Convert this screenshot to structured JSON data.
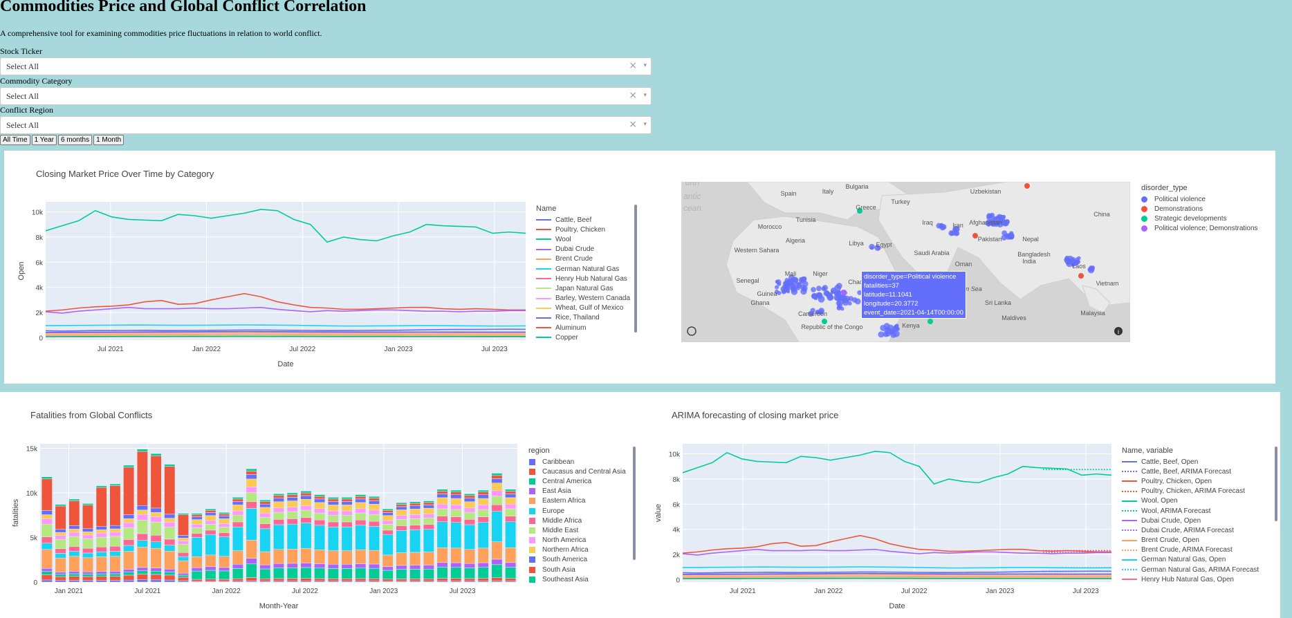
{
  "page": {
    "title": "Commodities Price and Global Conflict Correlation",
    "subtitle": "A comprehensive tool for examining commodities price fluctuations in relation to world conflict."
  },
  "filters": [
    {
      "label": "Stock Ticker",
      "value": "Select All"
    },
    {
      "label": "Commodity Category",
      "value": "Select All"
    },
    {
      "label": "Conflict Region",
      "value": "Select All"
    }
  ],
  "range_buttons": [
    "All Time",
    "1 Year",
    "6 months",
    "1 Month"
  ],
  "icons": {
    "clear": "×",
    "dropdown": "▾",
    "mapbox_logo": "mapbox-logo-icon",
    "info": "info-icon"
  },
  "chart_data": [
    {
      "type": "line",
      "title": "Closing Market Price Over Time by Category",
      "xlabel": "Date",
      "ylabel": "Open",
      "x_ticks": [
        "Jul 2021",
        "Jan 2022",
        "Jul 2022",
        "Jan 2023",
        "Jul 2023"
      ],
      "y_ticks": [
        "0",
        "2k",
        "4k",
        "6k",
        "8k",
        "10k"
      ],
      "ylim": [
        -200,
        10800
      ],
      "legend_title": "Name",
      "series": [
        {
          "name": "Cattle, Beef",
          "color": "#636efa",
          "values": [
            550,
            520,
            540,
            560,
            560,
            570,
            580,
            560,
            560,
            570,
            580,
            590,
            600,
            600,
            590,
            580,
            570,
            560,
            560,
            570,
            580,
            580,
            600,
            620,
            640,
            650,
            650,
            660,
            670,
            660
          ]
        },
        {
          "name": "Poultry, Chicken",
          "color": "#ef553b",
          "values": [
            2100,
            2200,
            2350,
            2450,
            2500,
            2600,
            2850,
            2950,
            2650,
            2700,
            3000,
            3250,
            3500,
            3250,
            2850,
            2600,
            2400,
            2350,
            2250,
            2250,
            2300,
            2350,
            2400,
            2400,
            2300,
            2250,
            2300,
            2250,
            2200,
            2200
          ]
        },
        {
          "name": "Wool",
          "color": "#00cc96",
          "values": [
            8500,
            8900,
            9300,
            10100,
            9600,
            9400,
            9350,
            9300,
            9800,
            9700,
            9500,
            9700,
            9900,
            10200,
            10100,
            9400,
            9000,
            7600,
            8000,
            7800,
            7700,
            8100,
            8400,
            9000,
            8900,
            8850,
            8800,
            8300,
            8400,
            8300
          ]
        },
        {
          "name": "Dubai Crude",
          "color": "#ab63fa",
          "values": [
            2050,
            1950,
            2100,
            2200,
            2300,
            2400,
            2300,
            2300,
            2300,
            2350,
            2300,
            2300,
            2350,
            2400,
            2250,
            2150,
            2050,
            2150,
            2100,
            2150,
            2200,
            2200,
            2150,
            2100,
            2100,
            2050,
            2100,
            2100,
            2150,
            2150
          ]
        },
        {
          "name": "Brent Crude",
          "color": "#ffa15a",
          "values": [
            180,
            185,
            190,
            195,
            200,
            210,
            215,
            220,
            225,
            230,
            240,
            250,
            260,
            255,
            245,
            235,
            225,
            220,
            215,
            210,
            205,
            200,
            198,
            195,
            195,
            190,
            192,
            195,
            198,
            200
          ]
        },
        {
          "name": "German Natural Gas",
          "color": "#19d3f3",
          "values": [
            950,
            960,
            970,
            980,
            990,
            1000,
            1000,
            990,
            980,
            980,
            990,
            1000,
            1010,
            1000,
            990,
            980,
            960,
            940,
            920,
            920,
            930,
            940,
            950,
            960,
            950,
            940,
            930,
            920,
            920,
            930
          ]
        },
        {
          "name": "Henry Hub Natural Gas",
          "color": "#ff6692",
          "values": [
            350,
            360,
            370,
            380,
            390,
            400,
            410,
            420,
            420,
            430,
            440,
            450,
            460,
            450,
            440,
            430,
            420,
            410,
            400,
            400,
            400,
            410,
            420,
            420,
            410,
            400,
            400,
            400,
            410,
            410
          ]
        },
        {
          "name": "Japan Natural Gas",
          "color": "#b6e880",
          "values": [
            100,
            105,
            110,
            115,
            120,
            125,
            130,
            135,
            140,
            145,
            150,
            155,
            160,
            155,
            150,
            145,
            140,
            135,
            130,
            128,
            126,
            125,
            124,
            123,
            122,
            121,
            120,
            120,
            120,
            120
          ]
        },
        {
          "name": "Barley, Western Canada",
          "color": "#ff97ff",
          "values": [
            250,
            255,
            260,
            265,
            270,
            275,
            280,
            285,
            290,
            295,
            300,
            305,
            310,
            305,
            300,
            295,
            290,
            285,
            280,
            278,
            276,
            275,
            274,
            273,
            272,
            271,
            270,
            270,
            270,
            270
          ]
        },
        {
          "name": "Wheat, Gulf of Mexico",
          "color": "#fecb52",
          "values": [
            300,
            305,
            310,
            315,
            320,
            325,
            330,
            335,
            340,
            345,
            350,
            355,
            360,
            355,
            350,
            345,
            340,
            335,
            330,
            328,
            326,
            325,
            324,
            323,
            322,
            321,
            320,
            320,
            320,
            320
          ]
        },
        {
          "name": "Rice, Thailand",
          "color": "#636efa",
          "values": [
            420,
            425,
            430,
            435,
            440,
            445,
            450,
            455,
            460,
            465,
            470,
            475,
            480,
            475,
            470,
            465,
            460,
            455,
            450,
            448,
            446,
            445,
            444,
            443,
            442,
            441,
            440,
            440,
            440,
            440
          ]
        },
        {
          "name": "Aluminum",
          "color": "#ef553b",
          "values": [
            60,
            62,
            64,
            66,
            68,
            70,
            72,
            74,
            76,
            78,
            80,
            82,
            84,
            82,
            80,
            78,
            76,
            74,
            72,
            71,
            70,
            70,
            69,
            69,
            68,
            68,
            67,
            67,
            66,
            66
          ]
        },
        {
          "name": "Copper",
          "color": "#00cc96",
          "values": [
            80,
            82,
            84,
            86,
            88,
            90,
            92,
            94,
            96,
            98,
            100,
            102,
            104,
            102,
            100,
            98,
            96,
            94,
            92,
            91,
            90,
            90,
            89,
            89,
            88,
            88,
            87,
            87,
            86,
            86
          ]
        }
      ]
    },
    {
      "type": "map",
      "legend_title": "disorder_type",
      "legend": [
        {
          "name": "Political violence",
          "color": "#636efa"
        },
        {
          "name": "Demonstrations",
          "color": "#ef553b"
        },
        {
          "name": "Strategic developments",
          "color": "#00cc96"
        },
        {
          "name": "Political violence; Demonstrations",
          "color": "#ab63fa"
        }
      ],
      "places": [
        "Spain",
        "Italy",
        "Bulgaria",
        "Turkey",
        "Uzbekistan",
        "Greece",
        "China",
        "Morocco",
        "Tunisia",
        "Iraq",
        "Iran",
        "Afghanistan",
        "Algeria",
        "Libya",
        "Egypt",
        "Pakistan",
        "Nepal",
        "Western Sahara",
        "Saudi Arabia",
        "Bangladesh",
        "India",
        "Oman",
        "Laos",
        "Mali",
        "Niger",
        "Senegal",
        "Chad",
        "Arabian Sea",
        "Vietnam",
        "Guinea",
        "Ghana",
        "Sri Lanka",
        "Cameroon",
        "Malaysia",
        "Maldives",
        "Kenya",
        "Republic of the Congo",
        "antic",
        "cean",
        "orth"
      ],
      "tooltip": [
        "disorder_type=Political violence",
        "fatalities=37",
        "latitude=11.1041",
        "longitude=20.3772",
        "event_date=2021-04-14T00:00:00"
      ]
    },
    {
      "type": "bar",
      "stacked": true,
      "title": "Fatalities from Global Conflicts",
      "xlabel": "Month-Year",
      "ylabel": "fatalities",
      "x_ticks": [
        "Jan 2021",
        "Jul 2021",
        "Jan 2022",
        "Jul 2022",
        "Jan 2023",
        "Jul 2023"
      ],
      "y_ticks": [
        "0",
        "5k",
        "10k",
        "15k"
      ],
      "ylim": [
        0,
        15500
      ],
      "legend_title": "region",
      "totals": [
        11800,
        8700,
        9300,
        8800,
        10800,
        11000,
        13100,
        14900,
        14400,
        13200,
        7700,
        7700,
        8200,
        7800,
        9500,
        12700,
        9200,
        9900,
        10000,
        10200,
        9800,
        9500,
        9500,
        9800,
        9600,
        8200,
        8900,
        9000,
        9100,
        10400,
        10300,
        9900,
        10300,
        12200,
        10400
      ],
      "series": [
        {
          "name": "Caribbean",
          "color": "#636efa"
        },
        {
          "name": "Caucasus and Central Asia",
          "color": "#ef553b"
        },
        {
          "name": "Central America",
          "color": "#00cc96"
        },
        {
          "name": "East Asia",
          "color": "#ab63fa"
        },
        {
          "name": "Eastern Africa",
          "color": "#ffa15a"
        },
        {
          "name": "Europe",
          "color": "#19d3f3"
        },
        {
          "name": "Middle Africa",
          "color": "#ff6692"
        },
        {
          "name": "Middle East",
          "color": "#b6e880"
        },
        {
          "name": "North America",
          "color": "#ff97ff"
        },
        {
          "name": "Northern Africa",
          "color": "#fecb52"
        },
        {
          "name": "South America",
          "color": "#636efa"
        },
        {
          "name": "South Asia",
          "color": "#ef553b"
        },
        {
          "name": "Southeast Asia",
          "color": "#00cc96"
        }
      ]
    },
    {
      "type": "line",
      "title": "ARIMA forecasting of closing market price",
      "xlabel": "Date",
      "ylabel": "value",
      "x_ticks": [
        "Jul 2021",
        "Jan 2022",
        "Jul 2022",
        "Jan 2023",
        "Jul 2023"
      ],
      "y_ticks": [
        "0",
        "2k",
        "4k",
        "6k",
        "8k",
        "10k"
      ],
      "ylim": [
        -200,
        10800
      ],
      "legend_title": "Name, variable",
      "legend": [
        {
          "name": "Cattle, Beef, Open",
          "color": "#636efa",
          "dash": false
        },
        {
          "name": "Cattle, Beef, ARIMA Forecast",
          "color": "#636efa",
          "dash": true
        },
        {
          "name": "Poultry, Chicken, Open",
          "color": "#ef553b",
          "dash": false
        },
        {
          "name": "Poultry, Chicken, ARIMA Forecast",
          "color": "#ef553b",
          "dash": true
        },
        {
          "name": "Wool, Open",
          "color": "#00cc96",
          "dash": false
        },
        {
          "name": "Wool, ARIMA Forecast",
          "color": "#00cc96",
          "dash": true
        },
        {
          "name": "Dubai Crude, Open",
          "color": "#ab63fa",
          "dash": false
        },
        {
          "name": "Dubai Crude, ARIMA Forecast",
          "color": "#ab63fa",
          "dash": true
        },
        {
          "name": "Brent Crude, Open",
          "color": "#ffa15a",
          "dash": false
        },
        {
          "name": "Brent Crude, ARIMA Forecast",
          "color": "#ffa15a",
          "dash": true
        },
        {
          "name": "German Natural Gas, Open",
          "color": "#19d3f3",
          "dash": false
        },
        {
          "name": "German Natural Gas, ARIMA Forecast",
          "color": "#19d3f3",
          "dash": true
        },
        {
          "name": "Henry Hub Natural Gas, Open",
          "color": "#ff6692",
          "dash": false
        }
      ],
      "forecast": {
        "Wool": 8750,
        "Poultry, Chicken": 2300,
        "Dubai Crude": 2150,
        "German Natural Gas": 950,
        "Cattle, Beef": 660
      }
    }
  ]
}
